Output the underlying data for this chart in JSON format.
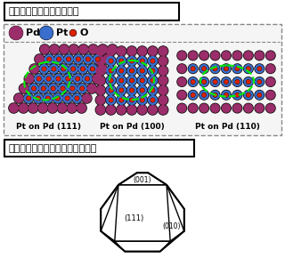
{
  "title_top": "モデル系で測定手法の確立",
  "title_bottom": "より複雑なコアシェル触媒を解析",
  "legend_pd": "Pd",
  "legend_pt": "Pt",
  "legend_o": "O",
  "color_pd": "#9B2D6A",
  "color_pt": "#3A6ECC",
  "color_o": "#DD2200",
  "color_bg": "#ffffff",
  "label_111": "Pt on Pd (111)",
  "label_100": "Pt on Pd (100)",
  "label_110": "Pt on Pd (110)",
  "face_001": "(001)",
  "face_111": "(111)",
  "face_010": "(010)"
}
